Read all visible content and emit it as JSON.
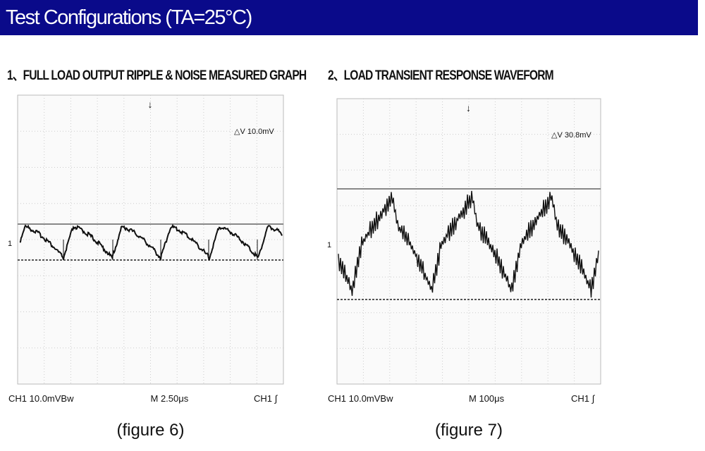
{
  "header": {
    "title": "Test Configurations (TA=25°C)"
  },
  "panels": [
    {
      "heading": "1、FULL LOAD OUTPUT RIPPLE & NOISE MEASURED GRAPH",
      "delta": "△V 10.0mV",
      "marker": "1",
      "ch_scale": "CH1  10.0mVBw",
      "timebase": "M 2.50μs",
      "trigger": "CH1 ∫",
      "caption": "(figure 6)"
    },
    {
      "heading": "2、LOAD TRANSIENT RESPONSE WAVEFORM",
      "delta": "△V 30.8mV",
      "marker": "1",
      "ch_scale": "CH1  10.0mVBw",
      "timebase": "M 100μs",
      "trigger": "CH1 ∫",
      "caption": "(figure 7)"
    }
  ]
}
